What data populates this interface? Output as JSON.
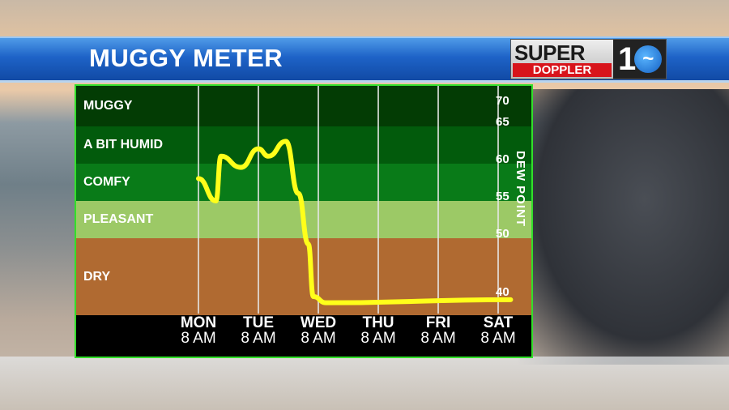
{
  "header": {
    "title": "MUGGY METER",
    "logo_text": [
      "SUPER",
      "DOPPLER",
      "10"
    ]
  },
  "chart_data": {
    "type": "line",
    "title": "MUGGY METER",
    "ylabel": "DEW POINT",
    "y_ticks": [
      70,
      65,
      60,
      55,
      50,
      40
    ],
    "ylim": [
      37,
      72
    ],
    "bands": [
      {
        "label": "MUGGY",
        "from": 65,
        "to": 72,
        "color": "#033c04"
      },
      {
        "label": "A BIT HUMID",
        "from": 60,
        "to": 65,
        "color": "#025b0c"
      },
      {
        "label": "COMFY",
        "from": 55,
        "to": 60,
        "color": "#097b18"
      },
      {
        "label": "PLEASANT",
        "from": 50,
        "to": 55,
        "color": "#9cc966"
      },
      {
        "label": "DRY",
        "from": 37,
        "to": 50,
        "color": "#b06a31"
      }
    ],
    "x_labels": [
      {
        "day": "MON",
        "time": "8 AM"
      },
      {
        "day": "TUE",
        "time": "8 AM"
      },
      {
        "day": "WED",
        "time": "8 AM"
      },
      {
        "day": "THU",
        "time": "8 AM"
      },
      {
        "day": "FRI",
        "time": "8 AM"
      },
      {
        "day": "SAT",
        "time": "8 AM"
      }
    ],
    "x_unit": "hours since MON 8 AM",
    "series": [
      {
        "name": "Dew point",
        "color": "#ffff1a",
        "x": [
          0,
          7,
          9,
          17,
          24,
          28,
          35,
          40,
          44,
          46,
          51,
          125
        ],
        "y": [
          58,
          55,
          61,
          59.5,
          62,
          61,
          63,
          56,
          49,
          40,
          39,
          39.5
        ]
      }
    ]
  }
}
